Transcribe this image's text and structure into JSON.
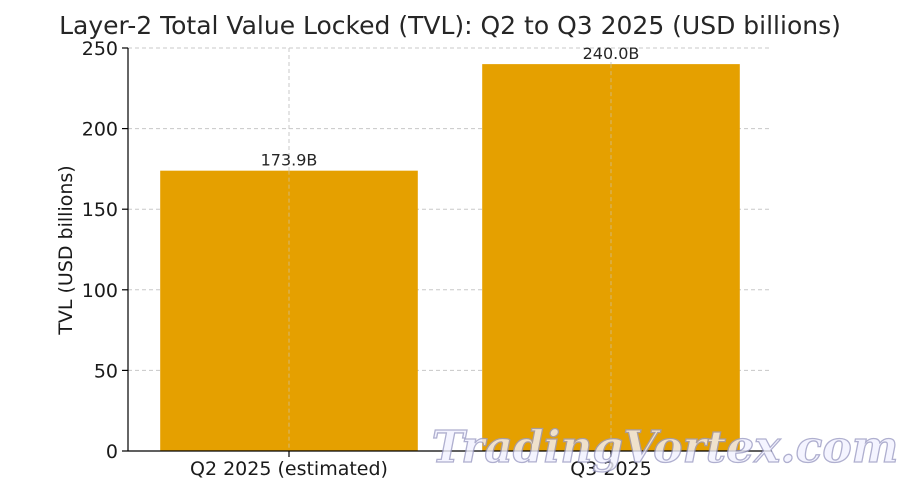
{
  "chart_data": {
    "type": "bar",
    "title": "Layer-2 Total Value Locked (TVL): Q2 to Q3 2025 (USD billions)",
    "xlabel": "",
    "ylabel": "TVL (USD billions)",
    "categories": [
      "Q2 2025 (estimated)",
      "Q3 2025"
    ],
    "values": [
      173.9,
      240.0
    ],
    "data_labels": [
      "173.9B",
      "240.0B"
    ],
    "ylim": [
      0,
      250
    ],
    "yticks": [
      0,
      50,
      100,
      150,
      200,
      250
    ],
    "grid": true,
    "bar_color": "#E5A000",
    "legend": "none"
  },
  "watermark": {
    "text": "TradingVortex.com"
  }
}
